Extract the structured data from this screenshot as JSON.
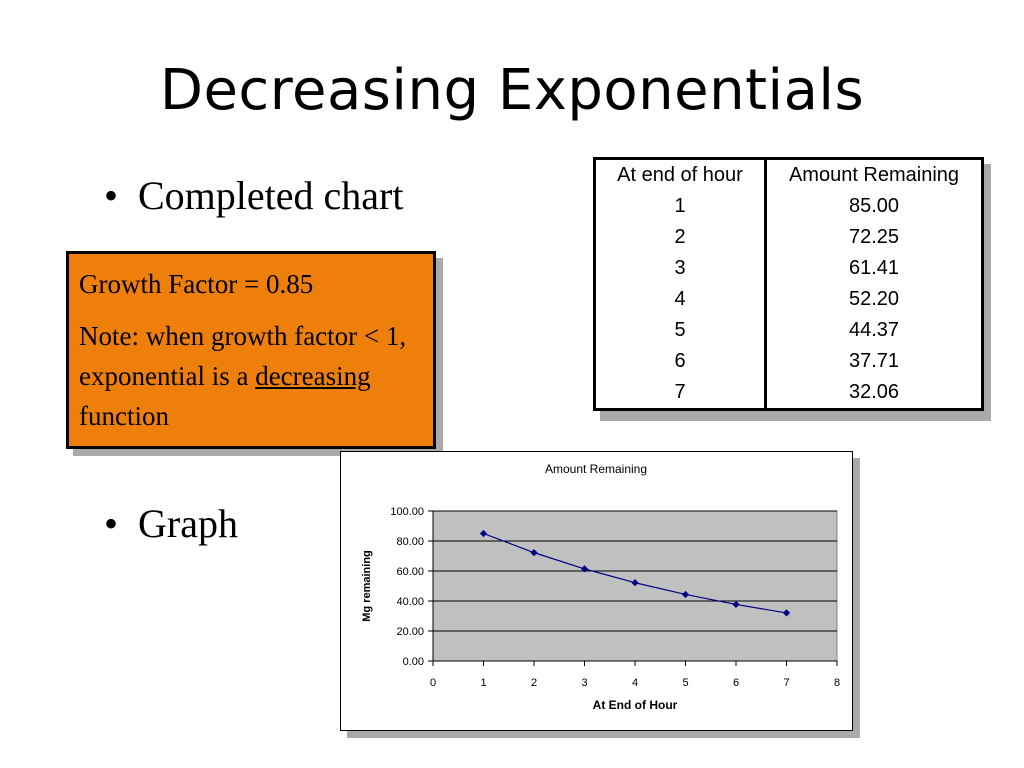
{
  "slide": {
    "title": "Decreasing Exponentials",
    "bullets": [
      {
        "marker": "•",
        "text": "Completed chart"
      },
      {
        "marker": "•",
        "text": "Graph"
      }
    ]
  },
  "note": {
    "line1": "Growth Factor = 0.85",
    "line2_pre": "Note: when growth factor < 1, exponential is a ",
    "line2_underlined": "decreasing",
    "line2_post": " function",
    "background_color": "#ef7f0b"
  },
  "table": {
    "headers": [
      "At end of hour",
      "Amount Remaining"
    ],
    "rows": [
      [
        "1",
        "85.00"
      ],
      [
        "2",
        "72.25"
      ],
      [
        "3",
        "61.41"
      ],
      [
        "4",
        "52.20"
      ],
      [
        "5",
        "44.37"
      ],
      [
        "6",
        "37.71"
      ],
      [
        "7",
        "32.06"
      ]
    ]
  },
  "chart_data": {
    "type": "line",
    "title": "Amount Remaining",
    "xlabel": "At End of Hour",
    "ylabel": "Mg remaining",
    "x": [
      1,
      2,
      3,
      4,
      5,
      6,
      7
    ],
    "series": [
      {
        "values": [
          85.0,
          72.25,
          61.41,
          52.2,
          44.37,
          37.71,
          32.06
        ],
        "color": "#000080"
      }
    ],
    "xlim": [
      0,
      8
    ],
    "ylim": [
      0,
      100
    ],
    "xticks": [
      "0",
      "1",
      "2",
      "3",
      "4",
      "5",
      "6",
      "7",
      "8"
    ],
    "yticks": [
      "0.00",
      "20.00",
      "40.00",
      "60.00",
      "80.00",
      "100.00"
    ],
    "plot_background": "#c0c0c0",
    "grid": true,
    "legend": false
  }
}
